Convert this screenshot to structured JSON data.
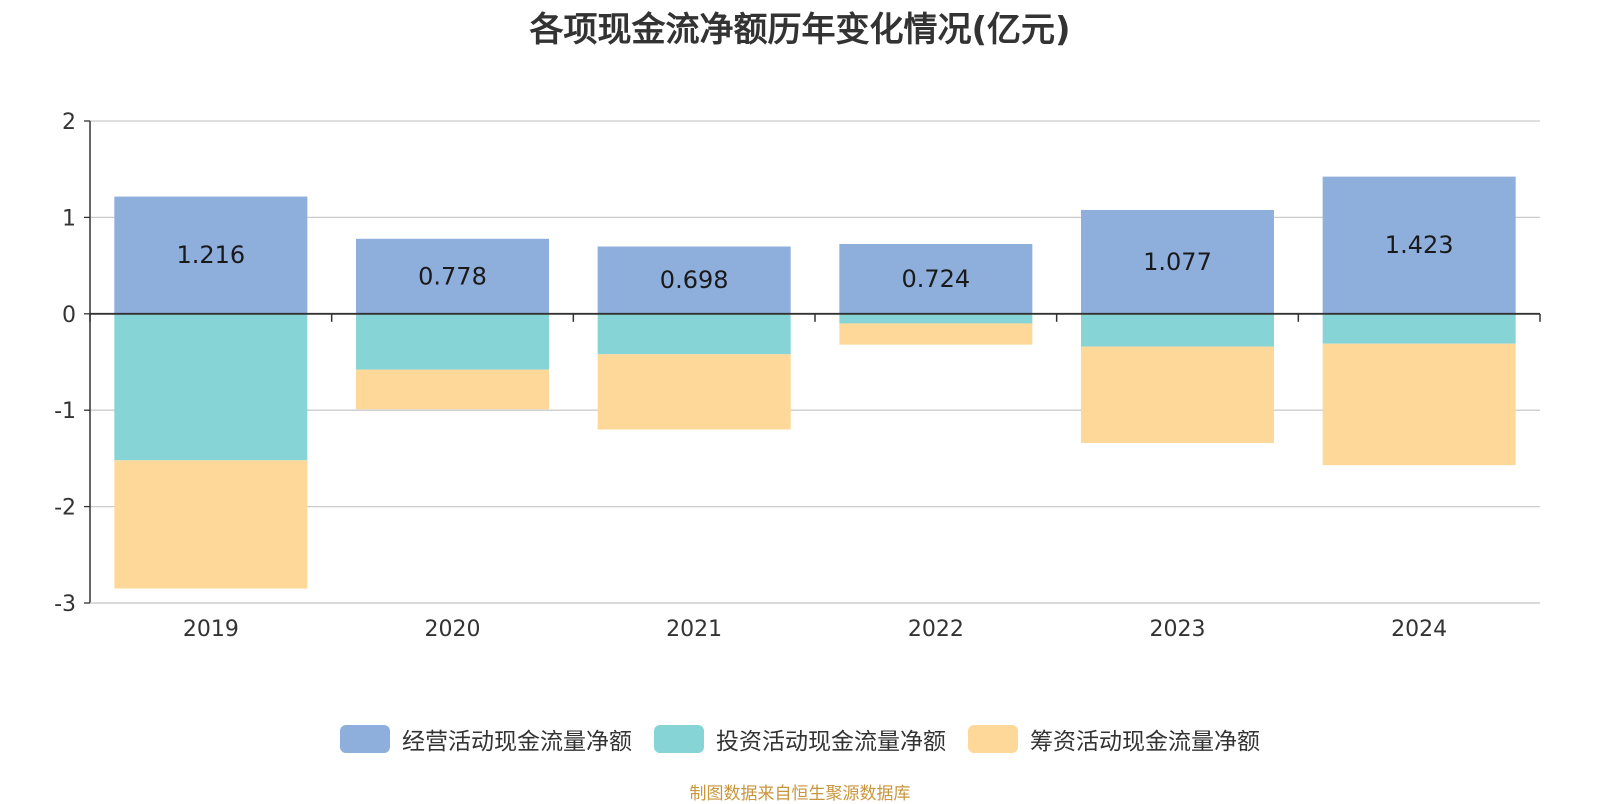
{
  "title": "各项现金流净额历年变化情况(亿元)",
  "source": "制图数据来自恒生聚源数据库",
  "colors": {
    "axis": "#333333",
    "grid": "#cccccc"
  },
  "chart_data": {
    "type": "bar",
    "stacked": true,
    "title": "各项现金流净额历年变化情况(亿元)",
    "xlabel": "",
    "ylabel": "",
    "categories": [
      "2019",
      "2020",
      "2021",
      "2022",
      "2023",
      "2024"
    ],
    "ylim": [
      -3,
      2
    ],
    "yticks": [
      2,
      1,
      0,
      -1,
      -2,
      -3
    ],
    "grid": true,
    "legend_position": "bottom",
    "series": [
      {
        "name": "经营活动现金流量净额",
        "color": "#8eaedc",
        "values": [
          1.216,
          0.778,
          0.698,
          0.724,
          1.077,
          1.423
        ],
        "labels": [
          "1.216",
          "0.778",
          "0.698",
          "0.724",
          "1.077",
          "1.423"
        ]
      },
      {
        "name": "投资活动现金流量净额",
        "color": "#86d4d6",
        "values": [
          -1.52,
          -0.58,
          -0.42,
          -0.1,
          -0.34,
          -0.31
        ]
      },
      {
        "name": "筹资活动现金流量净额",
        "color": "#fed898",
        "values": [
          -1.33,
          -0.41,
          -0.78,
          -0.22,
          -1.0,
          -1.26
        ]
      }
    ]
  }
}
